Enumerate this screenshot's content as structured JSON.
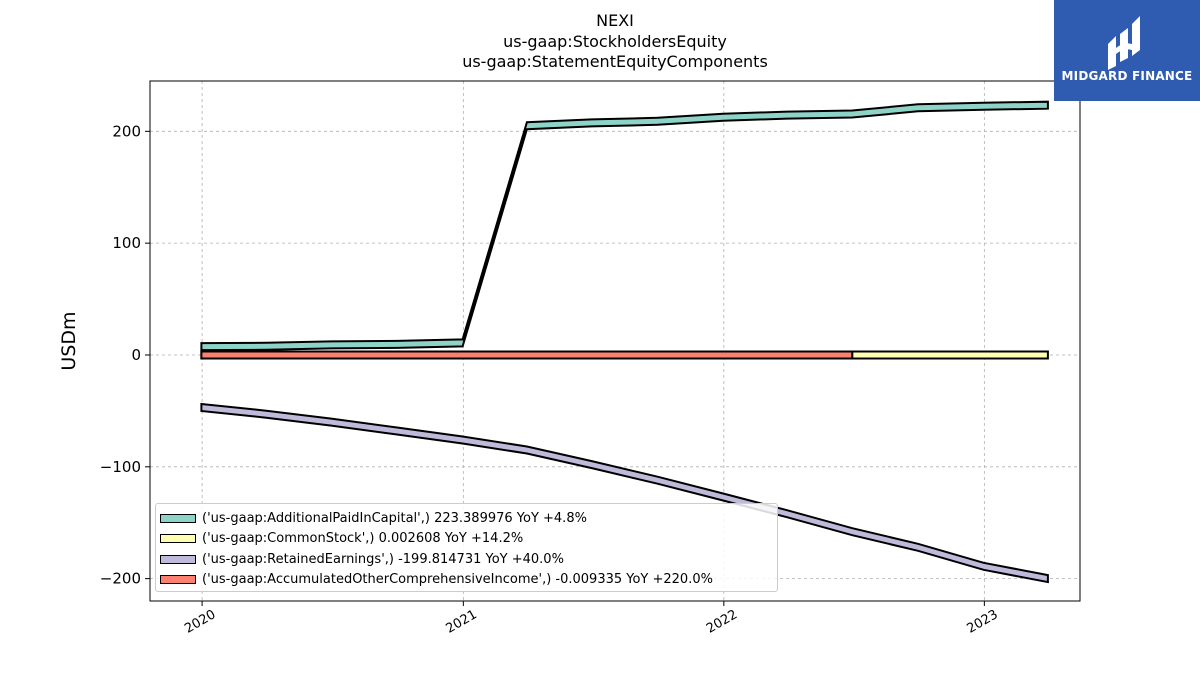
{
  "title_lines": [
    "NEXI",
    "us-gaap:StockholdersEquity",
    "us-gaap:StatementEquityComponents"
  ],
  "logo": {
    "text": "MIDGARD FINANCE",
    "icon": "midgard-logo-icon",
    "color": "#2f5bb1"
  },
  "chart_data": {
    "type": "area",
    "ylabel": "USDm",
    "xlabel": "",
    "ylim": [
      -220,
      245
    ],
    "xlim": [
      "2019-10-20",
      "2023-05-15"
    ],
    "yticks": [
      200,
      100,
      0,
      -100,
      -200
    ],
    "ytick_labels": [
      "200",
      "100",
      "0",
      "−100",
      "−200"
    ],
    "xticks": [
      "2020-01-01",
      "2021-01-01",
      "2022-01-01",
      "2023-01-01"
    ],
    "xtick_labels": [
      "2020",
      "2021",
      "2022",
      "2023"
    ],
    "grid": true,
    "legend_position": "lower-left",
    "series": [
      {
        "name": "('us-gaap:AdditionalPaidInCapital',) 223.389976 YoY +4.8%",
        "color": "#8dd3c7",
        "x": [
          "2019-12-31",
          "2020-03-31",
          "2020-06-30",
          "2020-09-30",
          "2020-12-31",
          "2021-03-31",
          "2021-06-30",
          "2021-09-30",
          "2021-12-31",
          "2022-03-31",
          "2022-06-30",
          "2022-09-30",
          "2022-12-31",
          "2023-03-31"
        ],
        "values": [
          7.5,
          7.8,
          9.0,
          9.5,
          10.8,
          205.0,
          207.5,
          209.0,
          212.5,
          214.5,
          215.5,
          221.0,
          222.5,
          223.4
        ]
      },
      {
        "name": "('us-gaap:CommonStock',) 0.002608 YoY +14.2%",
        "color": "#ffffb3",
        "x": [
          "2019-12-31",
          "2023-03-31"
        ],
        "values": [
          0.0026,
          0.0026
        ]
      },
      {
        "name": "('us-gaap:RetainedEarnings',) -199.814731 YoY +40.0%",
        "color": "#bebada",
        "x": [
          "2019-12-31",
          "2020-03-31",
          "2020-06-30",
          "2020-09-30",
          "2020-12-31",
          "2021-03-31",
          "2021-06-30",
          "2021-09-30",
          "2021-12-31",
          "2022-03-31",
          "2022-06-30",
          "2022-09-30",
          "2022-12-31",
          "2023-03-31"
        ],
        "values": [
          -47,
          -53,
          -60,
          -68,
          -76,
          -85,
          -98,
          -112,
          -127,
          -142,
          -158,
          -172,
          -189,
          -200
        ]
      },
      {
        "name": "('us-gaap:AccumulatedOtherComprehensiveIncome',) -0.009335 YoY +220.0%",
        "color": "#fb8072",
        "x": [
          "2019-12-31",
          "2022-06-30"
        ],
        "values": [
          -0.009,
          -0.009
        ]
      }
    ]
  }
}
